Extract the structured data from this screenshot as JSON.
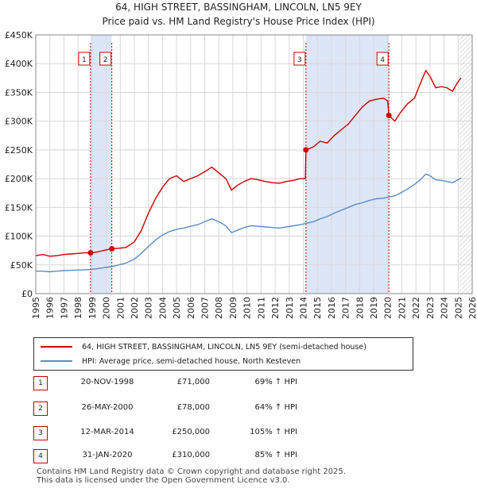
{
  "header": {
    "title_line1": "64, HIGH STREET, BASSINGHAM, LINCOLN, LN5 9EY",
    "title_line2": "Price paid vs. HM Land Registry's House Price Index (HPI)"
  },
  "colors": {
    "property_line": "#cc0000",
    "hpi_line": "#5b8cc8",
    "shade": "#dde6f6",
    "grid": "#d8d8d8",
    "future_hatch": "#bbbbbb"
  },
  "chart_data": {
    "type": "line",
    "x_unit": "year",
    "xlim": [
      1995,
      2026
    ],
    "ylim": [
      0,
      450000
    ],
    "y_ticks": [
      0,
      50000,
      100000,
      150000,
      200000,
      250000,
      300000,
      350000,
      400000,
      450000
    ],
    "y_tick_labels": [
      "£0",
      "£50K",
      "£100K",
      "£150K",
      "£200K",
      "£250K",
      "£300K",
      "£350K",
      "£400K",
      "£450K"
    ],
    "x_ticks": [
      "1995",
      "1996",
      "1997",
      "1998",
      "1999",
      "2000",
      "2001",
      "2002",
      "2003",
      "2004",
      "2005",
      "2006",
      "2007",
      "2008",
      "2009",
      "2010",
      "2011",
      "2012",
      "2013",
      "2014",
      "2015",
      "2016",
      "2017",
      "2018",
      "2019",
      "2020",
      "2021",
      "2022",
      "2023",
      "2024",
      "2025",
      "2026"
    ],
    "grid": true,
    "future_hatch_from": 2025.1,
    "shaded_spans": [
      [
        1998.89,
        2000.4
      ],
      [
        2014.19,
        2020.08
      ]
    ],
    "series": [
      {
        "name": "64, HIGH STREET, BASSINGHAM, LINCOLN, LN5 9EY (semi-detached house)",
        "color": "#cc0000",
        "points": [
          [
            1995.0,
            66000
          ],
          [
            1995.5,
            68000
          ],
          [
            1996.0,
            65000
          ],
          [
            1996.5,
            66000
          ],
          [
            1997.0,
            68000
          ],
          [
            1997.5,
            69000
          ],
          [
            1998.0,
            70000
          ],
          [
            1998.5,
            71000
          ],
          [
            1998.89,
            71000
          ],
          [
            1999.3,
            72000
          ],
          [
            1999.8,
            75000
          ],
          [
            2000.4,
            78000
          ],
          [
            2000.9,
            79000
          ],
          [
            2001.4,
            80000
          ],
          [
            2002.0,
            90000
          ],
          [
            2002.5,
            110000
          ],
          [
            2003.0,
            140000
          ],
          [
            2003.5,
            165000
          ],
          [
            2004.0,
            185000
          ],
          [
            2004.5,
            200000
          ],
          [
            2005.0,
            205000
          ],
          [
            2005.5,
            195000
          ],
          [
            2006.0,
            200000
          ],
          [
            2006.5,
            205000
          ],
          [
            2007.0,
            212000
          ],
          [
            2007.5,
            220000
          ],
          [
            2008.0,
            210000
          ],
          [
            2008.5,
            200000
          ],
          [
            2008.9,
            180000
          ],
          [
            2009.3,
            188000
          ],
          [
            2009.8,
            195000
          ],
          [
            2010.3,
            200000
          ],
          [
            2010.8,
            198000
          ],
          [
            2011.3,
            195000
          ],
          [
            2011.8,
            193000
          ],
          [
            2012.3,
            192000
          ],
          [
            2012.8,
            195000
          ],
          [
            2013.3,
            197000
          ],
          [
            2013.8,
            200000
          ],
          [
            2014.15,
            200000
          ],
          [
            2014.19,
            250000
          ],
          [
            2014.7,
            255000
          ],
          [
            2015.2,
            265000
          ],
          [
            2015.7,
            262000
          ],
          [
            2016.2,
            275000
          ],
          [
            2016.7,
            285000
          ],
          [
            2017.2,
            295000
          ],
          [
            2017.7,
            310000
          ],
          [
            2018.2,
            325000
          ],
          [
            2018.7,
            335000
          ],
          [
            2019.2,
            338000
          ],
          [
            2019.7,
            340000
          ],
          [
            2020.0,
            335000
          ],
          [
            2020.08,
            310000
          ],
          [
            2020.5,
            300000
          ],
          [
            2020.9,
            315000
          ],
          [
            2021.4,
            330000
          ],
          [
            2021.9,
            340000
          ],
          [
            2022.3,
            365000
          ],
          [
            2022.7,
            388000
          ],
          [
            2023.0,
            378000
          ],
          [
            2023.4,
            358000
          ],
          [
            2023.8,
            360000
          ],
          [
            2024.2,
            358000
          ],
          [
            2024.6,
            352000
          ],
          [
            2024.9,
            365000
          ],
          [
            2025.2,
            375000
          ]
        ]
      },
      {
        "name": "HPI: Average price, semi-detached house, North Kesteven",
        "color": "#5b8cc8",
        "points": [
          [
            1995.0,
            39000
          ],
          [
            1995.5,
            39000
          ],
          [
            1996.0,
            38000
          ],
          [
            1996.5,
            39000
          ],
          [
            1997.0,
            40000
          ],
          [
            1997.5,
            40500
          ],
          [
            1998.0,
            41000
          ],
          [
            1998.5,
            41500
          ],
          [
            1998.89,
            42000
          ],
          [
            1999.3,
            43000
          ],
          [
            1999.8,
            45000
          ],
          [
            2000.4,
            47000
          ],
          [
            2000.9,
            50000
          ],
          [
            2001.4,
            53000
          ],
          [
            2002.0,
            60000
          ],
          [
            2002.5,
            70000
          ],
          [
            2003.0,
            82000
          ],
          [
            2003.5,
            93000
          ],
          [
            2004.0,
            102000
          ],
          [
            2004.5,
            108000
          ],
          [
            2005.0,
            112000
          ],
          [
            2005.5,
            114000
          ],
          [
            2006.0,
            117000
          ],
          [
            2006.5,
            120000
          ],
          [
            2007.0,
            125000
          ],
          [
            2007.5,
            130000
          ],
          [
            2008.0,
            125000
          ],
          [
            2008.5,
            118000
          ],
          [
            2008.9,
            106000
          ],
          [
            2009.3,
            110000
          ],
          [
            2009.8,
            115000
          ],
          [
            2010.3,
            118000
          ],
          [
            2010.8,
            117000
          ],
          [
            2011.3,
            116000
          ],
          [
            2011.8,
            115000
          ],
          [
            2012.3,
            114000
          ],
          [
            2012.8,
            116000
          ],
          [
            2013.3,
            118000
          ],
          [
            2013.8,
            120000
          ],
          [
            2014.19,
            122000
          ],
          [
            2014.7,
            125000
          ],
          [
            2015.2,
            130000
          ],
          [
            2015.7,
            134000
          ],
          [
            2016.2,
            140000
          ],
          [
            2016.7,
            145000
          ],
          [
            2017.2,
            150000
          ],
          [
            2017.7,
            155000
          ],
          [
            2018.2,
            158000
          ],
          [
            2018.7,
            162000
          ],
          [
            2019.2,
            165000
          ],
          [
            2019.7,
            166000
          ],
          [
            2020.08,
            168000
          ],
          [
            2020.5,
            170000
          ],
          [
            2020.9,
            175000
          ],
          [
            2021.4,
            182000
          ],
          [
            2021.9,
            190000
          ],
          [
            2022.3,
            198000
          ],
          [
            2022.7,
            208000
          ],
          [
            2023.0,
            205000
          ],
          [
            2023.4,
            198000
          ],
          [
            2023.8,
            197000
          ],
          [
            2024.2,
            195000
          ],
          [
            2024.6,
            193000
          ],
          [
            2024.9,
            197000
          ],
          [
            2025.2,
            201000
          ]
        ]
      }
    ],
    "sales": [
      {
        "num": "1",
        "date": "20-NOV-1998",
        "price": "£71,000",
        "hpi": "69% ↑ HPI",
        "x": 1998.89,
        "y": 71000
      },
      {
        "num": "2",
        "date": "26-MAY-2000",
        "price": "£78,000",
        "hpi": "64% ↑ HPI",
        "x": 2000.4,
        "y": 78000
      },
      {
        "num": "3",
        "date": "12-MAR-2014",
        "price": "£250,000",
        "hpi": "105% ↑ HPI",
        "x": 2014.19,
        "y": 250000
      },
      {
        "num": "4",
        "date": "31-JAN-2020",
        "price": "£310,000",
        "hpi": "85% ↑ HPI",
        "x": 2020.08,
        "y": 310000
      }
    ]
  },
  "legend": {
    "property_label": "64, HIGH STREET, BASSINGHAM, LINCOLN, LN5 9EY (semi-detached house)",
    "hpi_label": "HPI: Average price, semi-detached house, North Kesteven"
  },
  "footer": {
    "line1": "Contains HM Land Registry data © Crown copyright and database right 2025.",
    "line2": "This data is licensed under the Open Government Licence v3.0."
  }
}
